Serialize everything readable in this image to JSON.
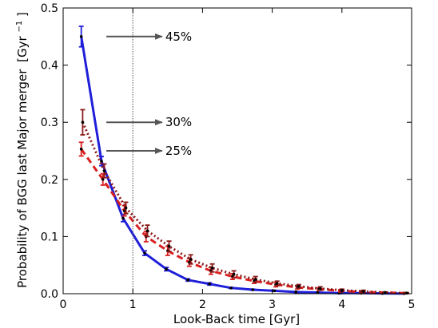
{
  "chart_data": {
    "type": "line",
    "xlabel": "Look-Back time [Gyr]",
    "ylabel_main": "Probability of BGG last Major merger",
    "ylabel_unit_base": "[Gyr",
    "ylabel_unit_exp": "−1",
    "ylabel_unit_close": "]",
    "xlim": [
      0,
      5
    ],
    "ylim": [
      0,
      0.5
    ],
    "x_ticks": [
      0,
      1,
      2,
      3,
      4,
      5
    ],
    "x_tick_labels": [
      "0",
      "1",
      "2",
      "3",
      "4",
      "5"
    ],
    "y_ticks": [
      0,
      0.1,
      0.2,
      0.3,
      0.4,
      0.5
    ],
    "y_tick_labels": [
      "0.0",
      "0.1",
      "0.2",
      "0.3",
      "0.4",
      "0.5"
    ],
    "vline_x": 1.0,
    "grid": false,
    "series": [
      {
        "color": "#1f1fd9",
        "style": "solid",
        "x": [
          0.26,
          0.55,
          0.86,
          1.17,
          1.48,
          1.79,
          2.1,
          2.41,
          2.72,
          3.03,
          3.34,
          3.65,
          3.96,
          4.27,
          4.58,
          4.89
        ],
        "y": [
          0.45,
          0.232,
          0.132,
          0.071,
          0.043,
          0.024,
          0.017,
          0.01,
          0.007,
          0.005,
          0.003,
          0.002,
          0.001,
          0.001,
          0.0005,
          0.0002
        ],
        "err": [
          0.018,
          0.008,
          0.006,
          0.004,
          0.003,
          0.002,
          0.002,
          0.001,
          0.001,
          0.001,
          0.001,
          0.001,
          0.001,
          0.0005,
          0.0005,
          0.0003
        ]
      },
      {
        "color": "#d92020",
        "style": "dashed",
        "x": [
          0.26,
          0.57,
          0.88,
          1.19,
          1.5,
          1.81,
          2.12,
          2.43,
          2.74,
          3.05,
          3.36,
          3.67,
          3.98,
          4.29,
          4.6,
          4.91
        ],
        "y": [
          0.253,
          0.2,
          0.145,
          0.1,
          0.075,
          0.055,
          0.04,
          0.03,
          0.022,
          0.016,
          0.011,
          0.008,
          0.005,
          0.003,
          0.002,
          0.001
        ],
        "err": [
          0.012,
          0.01,
          0.009,
          0.009,
          0.008,
          0.007,
          0.006,
          0.005,
          0.004,
          0.004,
          0.003,
          0.002,
          0.002,
          0.002,
          0.001,
          0.001
        ]
      },
      {
        "color": "#8b1a1a",
        "style": "dotted",
        "x": [
          0.28,
          0.59,
          0.9,
          1.21,
          1.52,
          1.83,
          2.14,
          2.45,
          2.76,
          3.07,
          3.38,
          3.69,
          4.0,
          4.31,
          4.62,
          4.93
        ],
        "y": [
          0.3,
          0.215,
          0.15,
          0.11,
          0.083,
          0.06,
          0.045,
          0.034,
          0.025,
          0.018,
          0.013,
          0.009,
          0.006,
          0.004,
          0.002,
          0.001
        ],
        "err": [
          0.022,
          0.012,
          0.01,
          0.01,
          0.009,
          0.008,
          0.007,
          0.006,
          0.005,
          0.004,
          0.003,
          0.003,
          0.002,
          0.002,
          0.001,
          0.001
        ]
      }
    ],
    "annotations": [
      {
        "text": "45%",
        "x_start": 0.62,
        "x_end": 1.42,
        "y": 0.45
      },
      {
        "text": "30%",
        "x_start": 0.62,
        "x_end": 1.42,
        "y": 0.3
      },
      {
        "text": "25%",
        "x_start": 0.62,
        "x_end": 1.42,
        "y": 0.25
      }
    ]
  }
}
